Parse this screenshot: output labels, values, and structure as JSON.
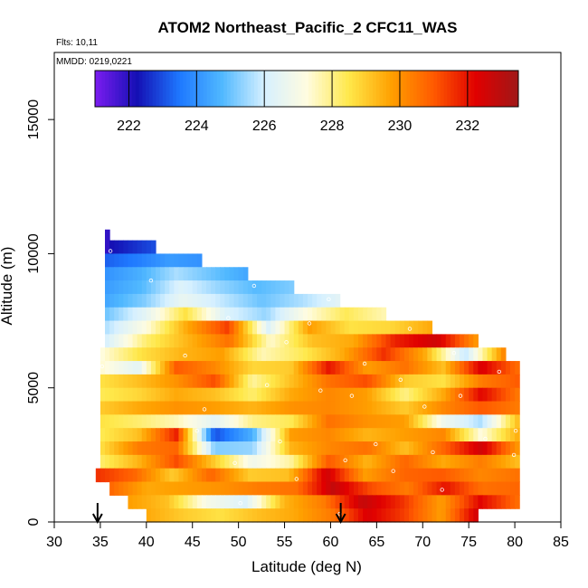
{
  "chart_data": {
    "type": "heatmap",
    "title": "ATOM2 Northeast_Pacific_2 CFC11_WAS",
    "flights_label": "Flts: 10,11",
    "dates_label": "MMDD: 0219,0221",
    "xlabel": "Latitude (deg N)",
    "ylabel": "Altitude (m)",
    "xlim": [
      30,
      85
    ],
    "ylim": [
      0,
      17500
    ],
    "xticks": [
      30,
      35,
      40,
      45,
      50,
      55,
      60,
      65,
      70,
      75,
      80,
      85
    ],
    "yticks": [
      0,
      5000,
      10000,
      15000
    ],
    "colorbar": {
      "range": [
        221,
        233.5
      ],
      "ticks": [
        222,
        224,
        226,
        228,
        230,
        232
      ],
      "stops": [
        "#7b1cf0",
        "#1410b4",
        "#1e78ff",
        "#50b8ff",
        "#d6f0ff",
        "#fffce0",
        "#ffe84a",
        "#ffa000",
        "#ff5a00",
        "#e00000",
        "#a01818"
      ],
      "position": "top-inside"
    },
    "layers": [
      {
        "alt_bottom": 10000,
        "alt_top": 10900,
        "lat_start": 35.5,
        "lat_end": 36.0,
        "values": [
          221.9
        ]
      },
      {
        "alt_bottom": 10000,
        "alt_top": 10500,
        "lat_start": 36.0,
        "lat_end": 41.0,
        "values": [
          222.2,
          222.6,
          223.0
        ]
      },
      {
        "alt_bottom": 9500,
        "alt_top": 10000,
        "lat_start": 35.5,
        "lat_end": 46.0,
        "values": [
          223.2,
          223.6,
          224.2,
          224.0
        ]
      },
      {
        "alt_bottom": 9000,
        "alt_top": 9500,
        "lat_start": 35.5,
        "lat_end": 51.0,
        "values": [
          224.0,
          224.6,
          225.6,
          225.0,
          224.4
        ]
      },
      {
        "alt_bottom": 8500,
        "alt_top": 9000,
        "lat_start": 35.5,
        "lat_end": 56.0,
        "values": [
          224.2,
          224.8,
          226.2,
          225.4,
          224.8,
          225.2
        ]
      },
      {
        "alt_bottom": 8000,
        "alt_top": 8500,
        "lat_start": 35.5,
        "lat_end": 61.0,
        "values": [
          224.4,
          225.2,
          226.6,
          225.8,
          225.0,
          225.6,
          226.4
        ]
      },
      {
        "alt_bottom": 7500,
        "alt_top": 8000,
        "lat_start": 35.5,
        "lat_end": 66.0,
        "values": [
          225.0,
          226.4,
          228.6,
          226.2,
          225.4,
          227.2,
          228.4,
          227.6
        ]
      },
      {
        "alt_bottom": 7000,
        "alt_top": 7500,
        "lat_start": 35.5,
        "lat_end": 71.0,
        "values": [
          225.6,
          227.2,
          229.6,
          231.4,
          226.2,
          229.8,
          228.6,
          228.8,
          229.6
        ]
      },
      {
        "alt_bottom": 6500,
        "alt_top": 7000,
        "lat_start": 35.5,
        "lat_end": 76.0,
        "values": [
          226.0,
          228.2,
          229.4,
          230.6,
          227.4,
          229.2,
          229.6,
          231.8,
          232.6,
          229.8
        ]
      },
      {
        "alt_bottom": 6000,
        "alt_top": 6500,
        "lat_start": 35.0,
        "lat_end": 79.0,
        "values": [
          227.2,
          228.6,
          229.4,
          229.8,
          227.6,
          228.4,
          229.6,
          231.6,
          229.6,
          225.8,
          230.4
        ]
      },
      {
        "alt_bottom": 5500,
        "alt_top": 6000,
        "lat_start": 35.0,
        "lat_end": 80.5,
        "values": [
          227.4,
          226.4,
          231.0,
          230.2,
          228.8,
          229.0,
          232.0,
          229.8,
          230.6,
          229.2,
          232.4,
          230.6
        ]
      },
      {
        "alt_bottom": 5000,
        "alt_top": 5500,
        "lat_start": 35.0,
        "lat_end": 80.5,
        "values": [
          228.6,
          229.2,
          230.0,
          231.2,
          227.8,
          229.2,
          230.6,
          231.2,
          229.0,
          228.6,
          230.4,
          231.0
        ]
      },
      {
        "alt_bottom": 4500,
        "alt_top": 5000,
        "lat_start": 35.0,
        "lat_end": 80.5,
        "values": [
          228.4,
          228.8,
          229.6,
          229.2,
          228.2,
          229.6,
          230.2,
          229.8,
          228.0,
          229.6,
          232.2,
          230.4
        ]
      },
      {
        "alt_bottom": 4000,
        "alt_top": 4500,
        "lat_start": 35.0,
        "lat_end": 80.5,
        "values": [
          229.0,
          229.6,
          230.0,
          229.8,
          229.4,
          230.0,
          230.2,
          229.8,
          229.0,
          230.2,
          231.0,
          230.4
        ]
      },
      {
        "alt_bottom": 3500,
        "alt_top": 4000,
        "lat_start": 35.0,
        "lat_end": 80.5,
        "values": [
          228.6,
          228.2,
          227.6,
          226.4,
          228.0,
          228.4,
          230.6,
          230.0,
          229.8,
          226.8,
          225.6,
          229.4
        ]
      },
      {
        "alt_bottom": 3000,
        "alt_top": 3500,
        "lat_start": 35.0,
        "lat_end": 80.5,
        "values": [
          228.4,
          229.2,
          231.8,
          223.0,
          224.6,
          229.8,
          230.2,
          229.4,
          229.8,
          230.2,
          227.2,
          229.6
        ]
      },
      {
        "alt_bottom": 2500,
        "alt_top": 3000,
        "lat_start": 35.0,
        "lat_end": 80.5,
        "values": [
          228.6,
          230.4,
          230.8,
          225.2,
          225.4,
          229.4,
          230.2,
          230.6,
          229.2,
          230.8,
          232.6,
          229.8
        ]
      },
      {
        "alt_bottom": 2000,
        "alt_top": 2500,
        "lat_start": 35.0,
        "lat_end": 80.5,
        "values": [
          228.2,
          229.4,
          231.2,
          229.0,
          226.8,
          227.8,
          231.0,
          229.4,
          230.8,
          229.6,
          230.4,
          229.2
        ]
      },
      {
        "alt_bottom": 1500,
        "alt_top": 2000,
        "lat_start": 34.5,
        "lat_end": 80.5,
        "values": [
          231.6,
          230.8,
          229.0,
          230.8,
          229.0,
          229.2,
          232.6,
          229.8,
          230.8,
          231.0,
          230.2,
          230.6
        ]
      },
      {
        "alt_bottom": 1000,
        "alt_top": 1500,
        "lat_start": 36.0,
        "lat_end": 80.5,
        "values": [
          230.8,
          229.6,
          229.8,
          230.0,
          230.4,
          230.6,
          232.8,
          231.2,
          230.4,
          232.0,
          230.6,
          230.8
        ]
      },
      {
        "alt_bottom": 500,
        "alt_top": 1000,
        "lat_start": 38.0,
        "lat_end": 80.5,
        "values": [
          229.8,
          229.2,
          227.0,
          226.2,
          229.4,
          230.4,
          232.8,
          231.6,
          229.8,
          232.2,
          230.6
        ]
      },
      {
        "alt_bottom": 0,
        "alt_top": 500,
        "lat_start": 40.0,
        "lat_end": 76.0,
        "values": [
          229.6,
          229.0,
          228.6,
          229.2,
          229.6,
          230.4,
          232.4,
          231.4,
          229.8,
          232.6
        ]
      }
    ],
    "sample_markers": [
      [
        35.2,
        5800
      ],
      [
        36.1,
        10100
      ],
      [
        40.5,
        9000
      ],
      [
        44.2,
        6200
      ],
      [
        45.5,
        3400
      ],
      [
        46.3,
        4200
      ],
      [
        48.9,
        7600
      ],
      [
        49.6,
        2200
      ],
      [
        50.2,
        700
      ],
      [
        51.7,
        8800
      ],
      [
        53.1,
        5100
      ],
      [
        53.6,
        9600
      ],
      [
        54.5,
        3000
      ],
      [
        55.2,
        6700
      ],
      [
        56.3,
        1600
      ],
      [
        57.7,
        7400
      ],
      [
        58.9,
        4900
      ],
      [
        59.8,
        8300
      ],
      [
        61.0,
        300
      ],
      [
        61.6,
        2300
      ],
      [
        62.3,
        4700
      ],
      [
        63.7,
        5900
      ],
      [
        64.9,
        2900
      ],
      [
        66.8,
        1900
      ],
      [
        67.6,
        5300
      ],
      [
        68.6,
        7200
      ],
      [
        70.2,
        4300
      ],
      [
        71.1,
        2600
      ],
      [
        72.1,
        1200
      ],
      [
        73.4,
        6300
      ],
      [
        74.1,
        4700
      ],
      [
        76.8,
        3100
      ],
      [
        78.3,
        5600
      ],
      [
        79.9,
        2500
      ],
      [
        80.1,
        3400
      ]
    ],
    "arrows": [
      {
        "lat": 34.7
      },
      {
        "lat": 61.1
      }
    ]
  }
}
